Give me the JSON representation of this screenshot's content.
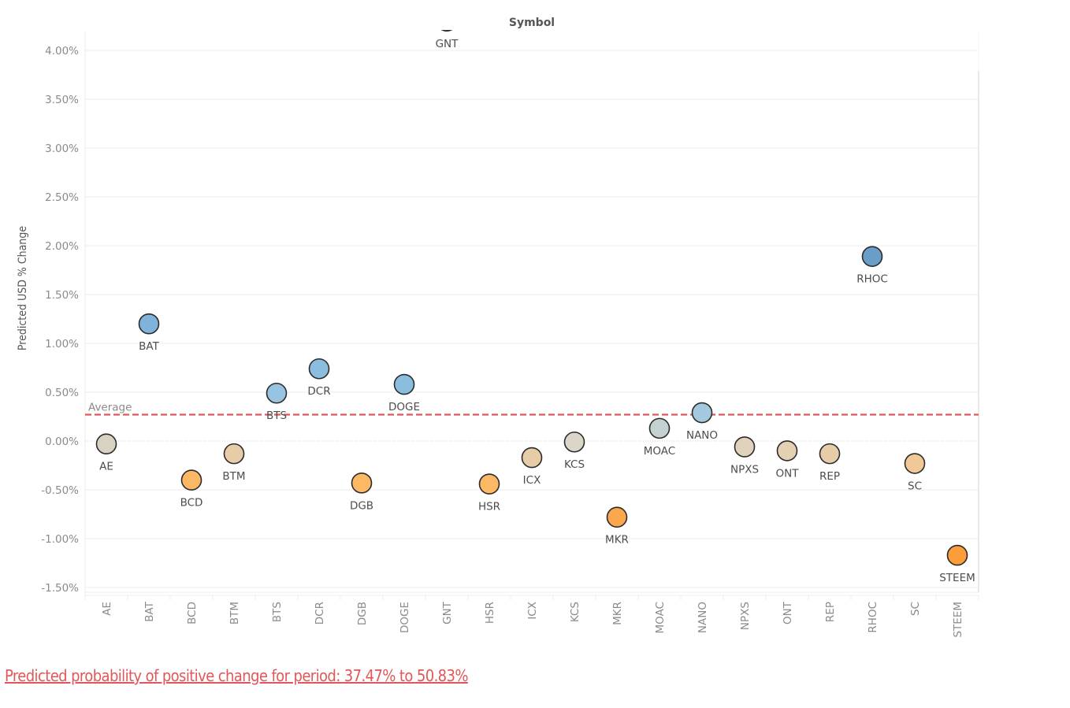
{
  "chart_data": {
    "type": "scatter",
    "title": "Symbol",
    "xlabel": "",
    "ylabel": "Predicted USD % Change",
    "ylim": [
      -1.55,
      4.2
    ],
    "yticks": [
      4.0,
      3.5,
      3.0,
      2.5,
      2.0,
      1.5,
      1.0,
      0.5,
      0.0,
      -0.5,
      -1.0,
      -1.5
    ],
    "ytick_labels": [
      "4.00%",
      "3.50%",
      "3.00%",
      "2.50%",
      "2.00%",
      "1.50%",
      "1.00%",
      "0.50%",
      "0.00%",
      "-0.50%",
      "-1.00%",
      "-1.50%"
    ],
    "grid": true,
    "categories": [
      "AE",
      "BAT",
      "BCD",
      "BTM",
      "BTS",
      "DCR",
      "DGB",
      "DOGE",
      "GNT",
      "HSR",
      "ICX",
      "KCS",
      "MKR",
      "MOAC",
      "NANO",
      "NPXS",
      "ONT",
      "REP",
      "RHOC",
      "SC",
      "STEEM"
    ],
    "values": [
      -0.03,
      1.2,
      -0.4,
      -0.13,
      0.49,
      0.74,
      -0.43,
      0.58,
      4.3,
      -0.44,
      -0.17,
      -0.01,
      -0.78,
      0.13,
      0.29,
      -0.06,
      -0.1,
      -0.13,
      1.89,
      -0.23,
      -1.17
    ],
    "point_colors": [
      "#d9d2c2",
      "#7fb3d9",
      "#fdb866",
      "#e6cda8",
      "#96c4e1",
      "#8bbede",
      "#fdb866",
      "#8bbede",
      "#2f5f8a",
      "#fdb866",
      "#e6cda8",
      "#dcd6c8",
      "#fba74d",
      "#c3d1d0",
      "#a4c8dd",
      "#e0d2bc",
      "#e4d0b2",
      "#e6cda8",
      "#6a9ec9",
      "#f0c996",
      "#fa9d3a"
    ],
    "reference_line": {
      "label": "Average",
      "value": 0.27,
      "color": "#e15759",
      "style": "dashed"
    },
    "zero_line": true
  },
  "footer": {
    "text": "Predicted probability of positive change for period:  37.47% to 50.83%",
    "color": "#e15759"
  }
}
